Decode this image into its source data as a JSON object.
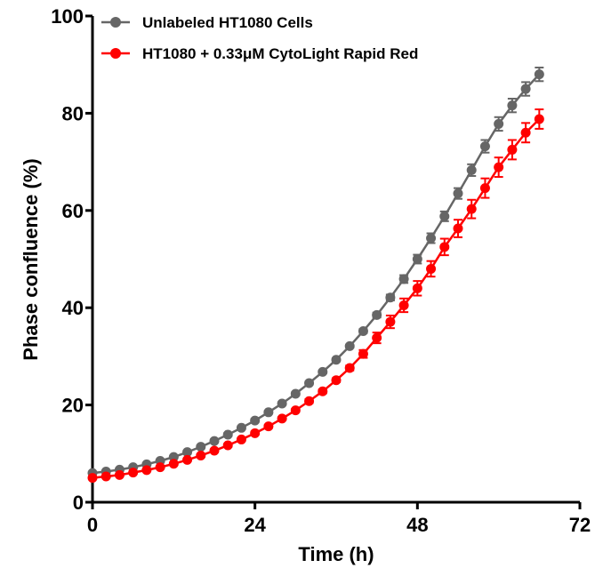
{
  "chart_data": {
    "type": "line",
    "xlabel": "Time (h)",
    "ylabel": "Phase confluence (%)",
    "xlim": [
      0,
      72
    ],
    "ylim": [
      0,
      100
    ],
    "xticks": [
      "0",
      "24",
      "48",
      "72"
    ],
    "yticks": [
      "0",
      "20",
      "40",
      "60",
      "80",
      "100"
    ],
    "legend_position": "top-left",
    "x": [
      0,
      2,
      4,
      6,
      8,
      10,
      12,
      14,
      16,
      18,
      20,
      22,
      24,
      26,
      28,
      30,
      32,
      34,
      36,
      38,
      40,
      42,
      44,
      46,
      48,
      50,
      52,
      54,
      56,
      58,
      60,
      62,
      64,
      66
    ],
    "series": [
      {
        "name": "Unlabeled HT1080 Cells",
        "color": "#666666",
        "values": [
          6.0,
          6.3,
          6.7,
          7.2,
          7.8,
          8.5,
          9.3,
          10.3,
          11.4,
          12.6,
          13.9,
          15.3,
          16.8,
          18.5,
          20.3,
          22.3,
          24.5,
          26.8,
          29.3,
          32.1,
          35.2,
          38.5,
          42.1,
          45.9,
          50.0,
          54.3,
          58.8,
          63.5,
          68.3,
          73.2,
          77.8,
          81.6,
          85.0,
          88.0
        ],
        "errors": [
          0.2,
          0.2,
          0.2,
          0.2,
          0.2,
          0.2,
          0.2,
          0.3,
          0.3,
          0.3,
          0.3,
          0.3,
          0.3,
          0.3,
          0.3,
          0.3,
          0.3,
          0.3,
          0.3,
          0.3,
          0.4,
          0.5,
          0.6,
          0.8,
          0.9,
          1.0,
          1.0,
          1.1,
          1.2,
          1.3,
          1.4,
          1.4,
          1.4,
          1.4
        ]
      },
      {
        "name": "HT1080 + 0.33μM CytoLight Rapid Red",
        "color": "#ff0000",
        "values": [
          5.0,
          5.3,
          5.6,
          6.1,
          6.6,
          7.2,
          7.9,
          8.7,
          9.6,
          10.6,
          11.7,
          12.9,
          14.2,
          15.6,
          17.2,
          18.9,
          20.8,
          22.8,
          25.1,
          27.6,
          30.5,
          33.8,
          37.1,
          40.5,
          44.0,
          48.0,
          52.5,
          56.3,
          60.3,
          64.6,
          68.9,
          72.5,
          76.0,
          78.8
        ],
        "errors": [
          0.2,
          0.2,
          0.2,
          0.2,
          0.2,
          0.2,
          0.2,
          0.2,
          0.3,
          0.3,
          0.3,
          0.3,
          0.3,
          0.3,
          0.3,
          0.3,
          0.4,
          0.4,
          0.4,
          0.5,
          0.8,
          1.1,
          1.3,
          1.4,
          1.5,
          1.6,
          1.7,
          1.8,
          1.9,
          2.0,
          2.0,
          2.0,
          2.0,
          2.0
        ]
      }
    ]
  }
}
